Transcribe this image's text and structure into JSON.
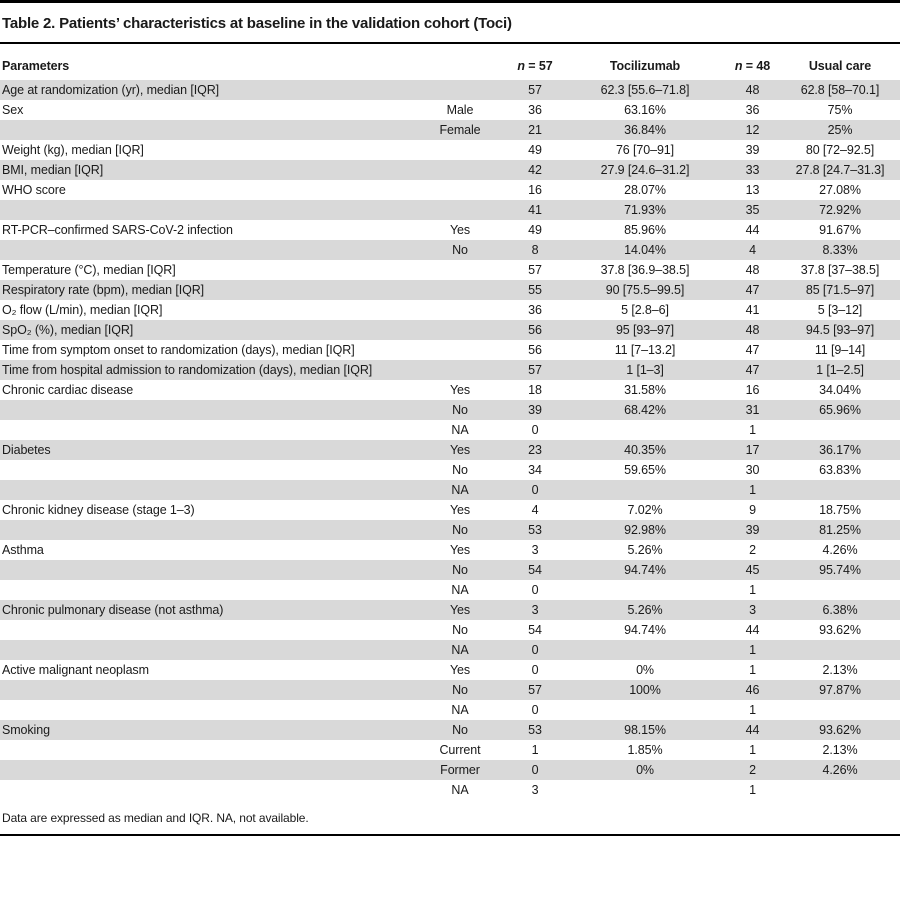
{
  "title": "Table 2. Patients’ characteristics at baseline in the validation cohort (Toci)",
  "header": {
    "parameters": "Parameters",
    "n1_var": "n",
    "n1_rest": " = 57",
    "group1": "Tocilizumab",
    "n2_var": "n",
    "n2_rest": " = 48",
    "group2": "Usual care"
  },
  "rows": [
    {
      "param": "Age at randomization (yr), median [IQR]",
      "cat": "",
      "n1": "57",
      "v1": "62.3 [55.6–71.8]",
      "n2": "48",
      "v2": "62.8 [58–70.1]"
    },
    {
      "param": "Sex",
      "cat": "Male",
      "n1": "36",
      "v1": "63.16%",
      "n2": "36",
      "v2": "75%"
    },
    {
      "param": "",
      "cat": "Female",
      "n1": "21",
      "v1": "36.84%",
      "n2": "12",
      "v2": "25%"
    },
    {
      "param": "Weight (kg), median [IQR]",
      "cat": "",
      "n1": "49",
      "v1": "76 [70–91]",
      "n2": "39",
      "v2": "80 [72–92.5]"
    },
    {
      "param": "BMI, median [IQR]",
      "cat": "",
      "n1": "42",
      "v1": "27.9 [24.6–31.2]",
      "n2": "33",
      "v2": "27.8 [24.7–31.3]"
    },
    {
      "param": "WHO score",
      "cat": "",
      "n1": "16",
      "v1": "28.07%",
      "n2": "13",
      "v2": "27.08%"
    },
    {
      "param": "",
      "cat": "",
      "n1": "41",
      "v1": "71.93%",
      "n2": "35",
      "v2": "72.92%"
    },
    {
      "param": "RT-PCR–confirmed SARS-CoV-2 infection",
      "cat": "Yes",
      "n1": "49",
      "v1": "85.96%",
      "n2": "44",
      "v2": "91.67%"
    },
    {
      "param": "",
      "cat": "No",
      "n1": "8",
      "v1": "14.04%",
      "n2": "4",
      "v2": "8.33%"
    },
    {
      "param": "Temperature (°C), median [IQR]",
      "cat": "",
      "n1": "57",
      "v1": "37.8 [36.9–38.5]",
      "n2": "48",
      "v2": "37.8 [37–38.5]"
    },
    {
      "param": "Respiratory rate (bpm), median [IQR]",
      "cat": "",
      "n1": "55",
      "v1": "90 [75.5–99.5]",
      "n2": "47",
      "v2": "85 [71.5–97]"
    },
    {
      "param": "O₂ flow (L/min), median [IQR]",
      "cat": "",
      "n1": "36",
      "v1": "5 [2.8–6]",
      "n2": "41",
      "v2": "5 [3–12]"
    },
    {
      "param": "SpO₂ (%), median [IQR]",
      "cat": "",
      "n1": "56",
      "v1": "95 [93–97]",
      "n2": "48",
      "v2": "94.5 [93–97]"
    },
    {
      "param": "Time from symptom onset to randomization (days), median [IQR]",
      "cat": "",
      "n1": "56",
      "v1": "11 [7–13.2]",
      "n2": "47",
      "v2": "11 [9–14]"
    },
    {
      "param": "Time from hospital admission to randomization (days), median [IQR]",
      "cat": "",
      "n1": "57",
      "v1": "1 [1–3]",
      "n2": "47",
      "v2": "1 [1–2.5]"
    },
    {
      "param": "Chronic cardiac disease",
      "cat": "Yes",
      "n1": "18",
      "v1": "31.58%",
      "n2": "16",
      "v2": "34.04%"
    },
    {
      "param": "",
      "cat": "No",
      "n1": "39",
      "v1": "68.42%",
      "n2": "31",
      "v2": "65.96%"
    },
    {
      "param": "",
      "cat": "NA",
      "n1": "0",
      "v1": "",
      "n2": "1",
      "v2": ""
    },
    {
      "param": "Diabetes",
      "cat": "Yes",
      "n1": "23",
      "v1": "40.35%",
      "n2": "17",
      "v2": "36.17%"
    },
    {
      "param": "",
      "cat": "No",
      "n1": "34",
      "v1": "59.65%",
      "n2": "30",
      "v2": "63.83%"
    },
    {
      "param": "",
      "cat": "NA",
      "n1": "0",
      "v1": "",
      "n2": "1",
      "v2": ""
    },
    {
      "param": "Chronic kidney disease (stage 1–3)",
      "cat": "Yes",
      "n1": "4",
      "v1": "7.02%",
      "n2": "9",
      "v2": "18.75%"
    },
    {
      "param": "",
      "cat": "No",
      "n1": "53",
      "v1": "92.98%",
      "n2": "39",
      "v2": "81.25%"
    },
    {
      "param": "Asthma",
      "cat": "Yes",
      "n1": "3",
      "v1": "5.26%",
      "n2": "2",
      "v2": "4.26%"
    },
    {
      "param": "",
      "cat": "No",
      "n1": "54",
      "v1": "94.74%",
      "n2": "45",
      "v2": "95.74%"
    },
    {
      "param": "",
      "cat": "NA",
      "n1": "0",
      "v1": "",
      "n2": "1",
      "v2": ""
    },
    {
      "param": "Chronic pulmonary disease (not asthma)",
      "cat": "Yes",
      "n1": "3",
      "v1": "5.26%",
      "n2": "3",
      "v2": "6.38%"
    },
    {
      "param": "",
      "cat": "No",
      "n1": "54",
      "v1": "94.74%",
      "n2": "44",
      "v2": "93.62%"
    },
    {
      "param": "",
      "cat": "NA",
      "n1": "0",
      "v1": "",
      "n2": "1",
      "v2": ""
    },
    {
      "param": "Active malignant neoplasm",
      "cat": "Yes",
      "n1": "0",
      "v1": "0%",
      "n2": "1",
      "v2": "2.13%"
    },
    {
      "param": "",
      "cat": "No",
      "n1": "57",
      "v1": "100%",
      "n2": "46",
      "v2": "97.87%"
    },
    {
      "param": "",
      "cat": "NA",
      "n1": "0",
      "v1": "",
      "n2": "1",
      "v2": ""
    },
    {
      "param": "Smoking",
      "cat": "No",
      "n1": "53",
      "v1": "98.15%",
      "n2": "44",
      "v2": "93.62%"
    },
    {
      "param": "",
      "cat": "Current",
      "n1": "1",
      "v1": "1.85%",
      "n2": "1",
      "v2": "2.13%"
    },
    {
      "param": "",
      "cat": "Former",
      "n1": "0",
      "v1": "0%",
      "n2": "2",
      "v2": "4.26%"
    },
    {
      "param": "",
      "cat": "NA",
      "n1": "3",
      "v1": "",
      "n2": "1",
      "v2": ""
    }
  ],
  "footnote": "Data are expressed as median and IQR. NA, not available.",
  "colors": {
    "row_shade": "#d9d9d9",
    "rule": "#000000",
    "text": "#1a1a1a"
  }
}
